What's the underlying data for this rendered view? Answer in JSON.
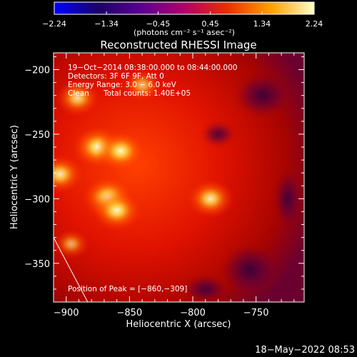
{
  "chart_data": {
    "type": "heatmap",
    "title": "Reconstructed RHESSI Image",
    "xlabel": "Heliocentric X (arcsec)",
    "ylabel": "Heliocentric Y (arcsec)",
    "xlim": [
      -910,
      -712
    ],
    "ylim": [
      -380,
      -187
    ],
    "x_ticks": [
      -900,
      -850,
      -800,
      -750
    ],
    "x_tick_labels": [
      "−900",
      "−850",
      "−800",
      "−750"
    ],
    "y_ticks": [
      -200,
      -250,
      -300,
      -350
    ],
    "y_tick_labels": [
      "−200",
      "−250",
      "−300",
      "−350"
    ],
    "colorbar": {
      "min": -2.24,
      "max": 2.24,
      "ticks": [
        -2.24,
        -1.34,
        -0.45,
        0.45,
        1.34,
        2.24
      ],
      "tick_labels": [
        "−2.24",
        "−1.34",
        "−0.45",
        "0.45",
        "1.34",
        "2.24"
      ],
      "unit_label": "(photons cm⁻² s⁻¹ asec⁻²)",
      "colors": [
        "#0000ff",
        "#1a0066",
        "#5a0090",
        "#b0006a",
        "#e83000",
        "#ffa000",
        "#ffffc8"
      ]
    },
    "annotations": {
      "time_range": "19−Oct−2014 08:38:00.000 to 08:44:00.000",
      "detectors": "Detectors: 3F 6F 9F, Att 0",
      "energy_range": "Energy Range: 3.0 − 6.0 keV",
      "method": "Clean",
      "total_counts": "Total counts: 1.40E+05",
      "peak": "Position of Peak = [−860,−309]"
    },
    "sources": [
      {
        "x": -875,
        "y": -260,
        "intensity": 1.0
      },
      {
        "x": -857,
        "y": -263,
        "intensity": 0.95
      },
      {
        "x": -867,
        "y": -299,
        "intensity": 1.0
      },
      {
        "x": -860,
        "y": -309,
        "intensity": 0.95
      },
      {
        "x": -891,
        "y": -222,
        "intensity": 0.75
      },
      {
        "x": -905,
        "y": -281,
        "intensity": 0.85
      },
      {
        "x": -786,
        "y": -300,
        "intensity": 0.85
      },
      {
        "x": -896,
        "y": -335,
        "intensity": 0.45
      },
      {
        "x": -840,
        "y": -212,
        "intensity": 0.55
      }
    ],
    "limb_line": [
      [
        -910,
        -330
      ],
      [
        -883,
        -380
      ]
    ]
  },
  "footer": {
    "date": "18−May−2022 08:53"
  }
}
